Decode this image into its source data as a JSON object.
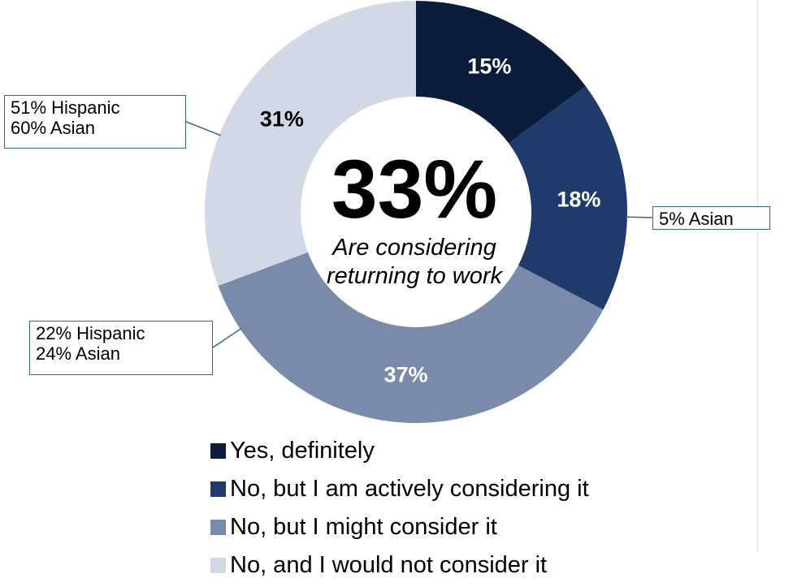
{
  "chart_data": {
    "type": "pie",
    "subtype": "donut",
    "categories": [
      "Yes, definitely",
      "No, but I am actively considering it",
      "No, but I might consider it",
      "No, and I would not consider it"
    ],
    "values": [
      15,
      18,
      37,
      31
    ],
    "data_labels": [
      "15%",
      "18%",
      "37%",
      "31%"
    ],
    "colors": [
      "#0b1c3d",
      "#213a6c",
      "#7a8aab",
      "#d3d8e6"
    ],
    "label_colors": [
      "#ffffff",
      "#ffffff",
      "#ffffff",
      "#000000"
    ],
    "center": {
      "value": "33%",
      "text_line1": "Are considering",
      "text_line2": "returning to work"
    },
    "legend_position": "bottom",
    "callouts": [
      {
        "lines": [
          "51% Hispanic",
          "60% Asian"
        ],
        "segment": "No, and I would not consider it"
      },
      {
        "lines": [
          "22% Hispanic",
          "24% Asian"
        ],
        "segment": "No, but I might consider it"
      },
      {
        "lines": [
          "5% Asian"
        ],
        "segment": "No, but I am actively considering it"
      }
    ],
    "callout_line_color": "#2e6c8e"
  }
}
